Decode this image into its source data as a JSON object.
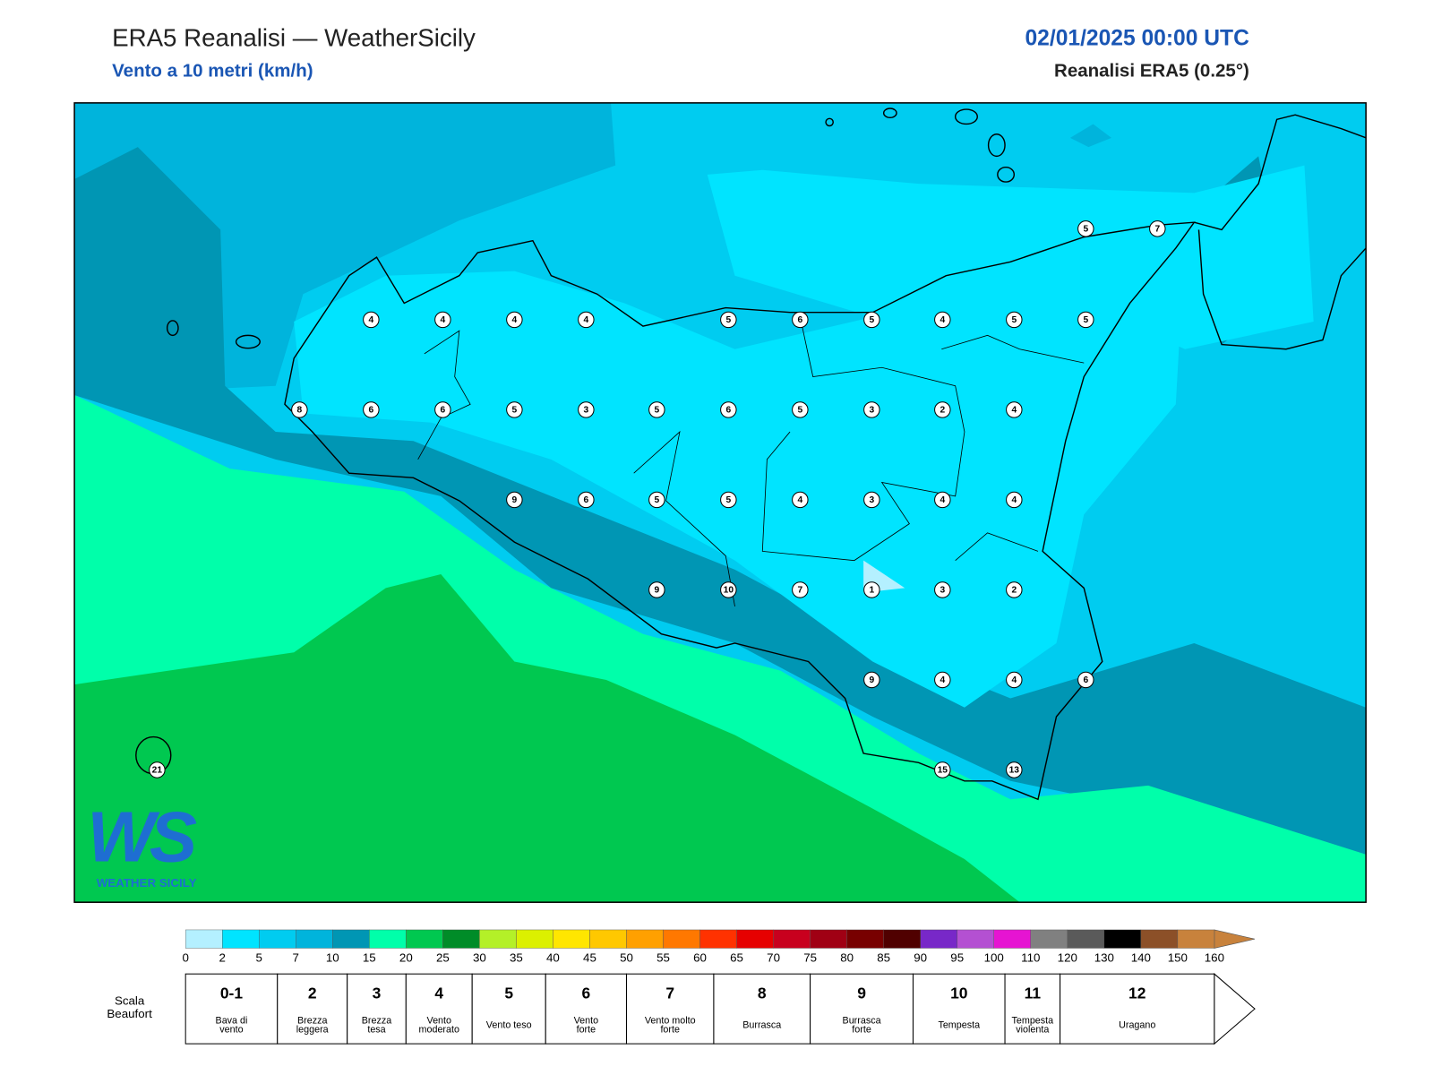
{
  "header": {
    "title": "ERA5 Reanalisi — WeatherSicily",
    "subtitle": "Vento a 10 metri (km/h)",
    "datetime": "02/01/2025 00:00 UTC",
    "source": "Reanalisi ERA5 (0.25°)"
  },
  "stations": [
    5,
    7,
    4,
    4,
    4,
    4,
    5,
    6,
    5,
    4,
    5,
    5,
    8,
    6,
    6,
    5,
    3,
    5,
    6,
    5,
    3,
    2,
    4,
    9,
    6,
    5,
    5,
    4,
    3,
    4,
    4,
    9,
    10,
    7,
    1,
    3,
    2,
    9,
    4,
    4,
    6,
    15,
    13,
    21
  ],
  "colorbar": {
    "ticks": [
      0,
      2,
      5,
      7,
      10,
      15,
      20,
      25,
      30,
      35,
      40,
      45,
      50,
      55,
      60,
      65,
      70,
      75,
      80,
      85,
      90,
      95,
      100,
      110,
      120,
      130,
      140,
      150,
      160
    ],
    "colors": [
      "#b4f0ff",
      "#00e4ff",
      "#00ccf0",
      "#00b4dc",
      "#0096b4",
      "#00ffaa",
      "#00c850",
      "#008c28",
      "#b4f028",
      "#dcf000",
      "#ffe600",
      "#ffc800",
      "#ffa000",
      "#ff7800",
      "#ff3200",
      "#e60000",
      "#c8001e",
      "#a00014",
      "#780000",
      "#500000",
      "#7828c8",
      "#b450d2",
      "#e614d2",
      "#808080",
      "#5a5a5a",
      "#000000",
      "#8c5028",
      "#c8823c"
    ]
  },
  "beaufort": {
    "label": [
      "Scala",
      "Beaufort"
    ],
    "levels": [
      {
        "force": "0-1",
        "desc": [
          "Bava di",
          "vento"
        ]
      },
      {
        "force": "2",
        "desc": [
          "Brezza",
          "leggera"
        ]
      },
      {
        "force": "3",
        "desc": [
          "Brezza",
          "tesa"
        ]
      },
      {
        "force": "4",
        "desc": [
          "Vento",
          "moderato"
        ]
      },
      {
        "force": "5",
        "desc": [
          "Vento teso"
        ]
      },
      {
        "force": "6",
        "desc": [
          "Vento",
          "forte"
        ]
      },
      {
        "force": "7",
        "desc": [
          "Vento molto",
          "forte"
        ]
      },
      {
        "force": "8",
        "desc": [
          "Burrasca"
        ]
      },
      {
        "force": "9",
        "desc": [
          "Burrasca",
          "forte"
        ]
      },
      {
        "force": "10",
        "desc": [
          "Tempesta"
        ]
      },
      {
        "force": "11",
        "desc": [
          "Tempesta",
          "violenta"
        ]
      },
      {
        "force": "12",
        "desc": [
          "Uragano"
        ]
      }
    ]
  },
  "logo": {
    "mark": "WS",
    "text": "WEATHER SICILY"
  }
}
